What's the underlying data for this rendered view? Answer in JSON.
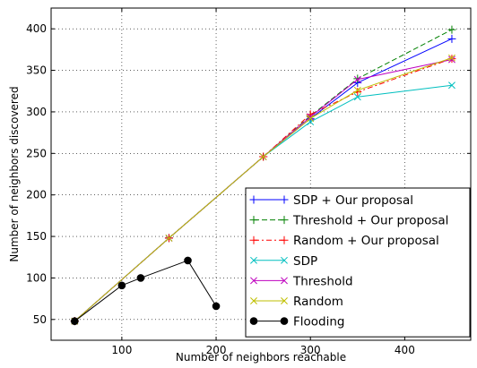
{
  "chart_data": {
    "type": "line",
    "title": "",
    "xlabel": "Number of neighbors reachable",
    "ylabel": "Number of neighbors discovered",
    "xlim": [
      25,
      470
    ],
    "ylim": [
      25,
      425
    ],
    "xticks": [
      100,
      200,
      300,
      400
    ],
    "yticks": [
      50,
      100,
      150,
      200,
      250,
      300,
      350,
      400
    ],
    "grid": "on (dotted)",
    "legend_position": "lower-right",
    "series": [
      {
        "name": "SDP + Our proposal",
        "color": "#0000ff",
        "linestyle": "solid",
        "marker": "plus",
        "x": [
          50,
          150,
          250,
          300,
          350,
          450
        ],
        "y": [
          48,
          148,
          246,
          292,
          335,
          388
        ]
      },
      {
        "name": "Threshold + Our proposal",
        "color": "#008000",
        "linestyle": "dashed",
        "marker": "plus",
        "x": [
          50,
          150,
          250,
          300,
          350,
          450
        ],
        "y": [
          48,
          148,
          246,
          295,
          340,
          399
        ]
      },
      {
        "name": "Random + Our proposal",
        "color": "#ff0000",
        "linestyle": "dashdot",
        "marker": "plus",
        "x": [
          50,
          150,
          250,
          300,
          350,
          450
        ],
        "y": [
          48,
          148,
          246,
          297,
          324,
          364
        ]
      },
      {
        "name": "SDP",
        "color": "#00bfbf",
        "linestyle": "solid",
        "marker": "x",
        "x": [
          50,
          150,
          250,
          300,
          350,
          450
        ],
        "y": [
          48,
          148,
          246,
          288,
          318,
          332
        ]
      },
      {
        "name": "Threshold",
        "color": "#bf00bf",
        "linestyle": "solid",
        "marker": "x",
        "x": [
          50,
          150,
          250,
          300,
          350,
          450
        ],
        "y": [
          48,
          148,
          246,
          294,
          339,
          363
        ]
      },
      {
        "name": "Random",
        "color": "#bfbf00",
        "linestyle": "solid",
        "marker": "x",
        "x": [
          50,
          150,
          250,
          300,
          350,
          450
        ],
        "y": [
          48,
          148,
          246,
          292,
          326,
          365
        ]
      },
      {
        "name": "Flooding",
        "color": "#000000",
        "linestyle": "solid",
        "marker": "circle",
        "x": [
          50,
          100,
          120,
          170,
          200
        ],
        "y": [
          48,
          91,
          100,
          121,
          66
        ]
      }
    ]
  }
}
